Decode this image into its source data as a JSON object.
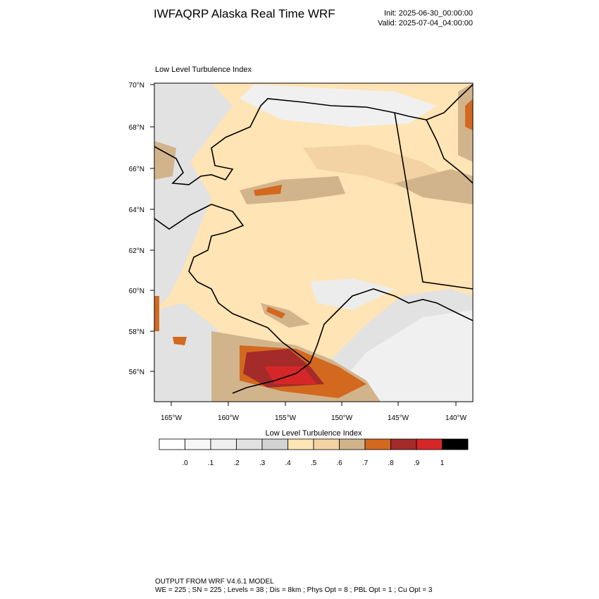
{
  "header": {
    "title": "IWFAQRP Alaska Real Time WRF",
    "init": "Init: 2025-06-30_00:00:00",
    "valid": "Valid: 2025-07-04_04:00:00"
  },
  "map": {
    "title": "Low Level Turbulence Index",
    "lat_labels": [
      "70°N",
      "68°N",
      "66°N",
      "64°N",
      "62°N",
      "60°N",
      "58°N",
      "56°N"
    ],
    "lon_labels": [
      "165°W",
      "160°W",
      "155°W",
      "150°W",
      "145°W",
      "140°W"
    ]
  },
  "colorbar": {
    "title": "Low Level Turbulence Index",
    "colors": [
      "#ffffff",
      "#f7f7f7",
      "#efefef",
      "#e2e2e2",
      "#d3d3d3",
      "#ffe4b5",
      "#f3d2a3",
      "#d2b48c",
      "#d2691e",
      "#a52a2a",
      "#d62728",
      "#000000"
    ],
    "labels": [
      ".0",
      ".1",
      ".2",
      ".3",
      ".4",
      ".5",
      ".6",
      ".7",
      ".8",
      ".9",
      "1"
    ]
  },
  "footer": {
    "line1": "OUTPUT FROM WRF V4.6.1 MODEL",
    "line2": "WE = 225 ; SN = 225 ; Levels = 38 ; Dis = 8km ; Phys Opt = 8 ; PBL Opt = 1 ; Cu Opt = 3"
  }
}
